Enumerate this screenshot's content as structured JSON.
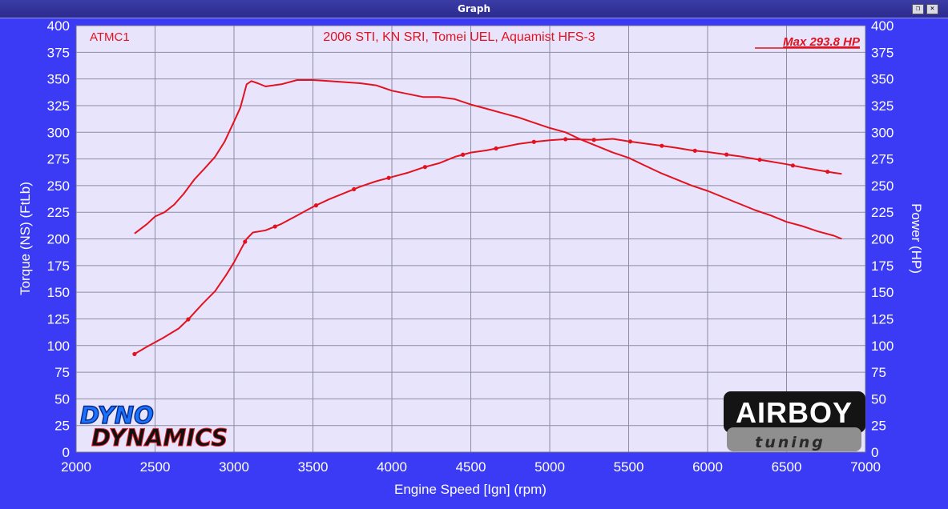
{
  "window": {
    "title": "Graph",
    "restore_glyph": "❐",
    "close_glyph": "×",
    "colors": {
      "frame": "#3b3bf5",
      "titlebar": "#2e2e96",
      "plot_bg": "#e8e4fc",
      "grid": "#8c8ca6",
      "curve": "#e3121e",
      "label_text": "#ffffff",
      "annotation": "#e3121e"
    }
  },
  "chart_data": {
    "type": "line",
    "xlabel": "Engine Speed [Ign] (rpm)",
    "ylabel_left": "Torque (NS) (FtLb)",
    "ylabel_right": "Power (HP)",
    "xlim": [
      2000,
      7000
    ],
    "ylim": [
      0,
      400
    ],
    "x_ticks": [
      "2000",
      "2500",
      "3000",
      "3500",
      "4000",
      "4500",
      "5000",
      "5500",
      "6000",
      "6500",
      "7000"
    ],
    "y_ticks": [
      "0",
      "25",
      "50",
      "75",
      "100",
      "125",
      "150",
      "175",
      "200",
      "225",
      "250",
      "275",
      "300",
      "325",
      "350",
      "375",
      "400"
    ],
    "grid": true,
    "annotations": {
      "run_id": "ATMC1",
      "title": "2006 STI, KN SRI, Tomei UEL, Aquamist HFS-3",
      "max_power": "Max 293.8 HP"
    },
    "series": [
      {
        "id": "torque",
        "axis": "left",
        "x": [
          2370,
          2450,
          2500,
          2560,
          2620,
          2680,
          2750,
          2820,
          2880,
          2940,
          3000,
          3040,
          3080,
          3110,
          3150,
          3200,
          3300,
          3400,
          3500,
          3600,
          3700,
          3800,
          3900,
          4000,
          4100,
          4200,
          4300,
          4400,
          4500,
          4600,
          4700,
          4800,
          4900,
          5000,
          5100,
          5200,
          5300,
          5400,
          5500,
          5600,
          5700,
          5800,
          5900,
          6000,
          6100,
          6200,
          6300,
          6400,
          6500,
          6600,
          6700,
          6800,
          6850
        ],
        "values": [
          205,
          214,
          221,
          225,
          232,
          242,
          256,
          267,
          277,
          291,
          310,
          323,
          345,
          348,
          346,
          343,
          345,
          349,
          349,
          348,
          347,
          346,
          344,
          339,
          336,
          333,
          333,
          331,
          326,
          322,
          318,
          314,
          309,
          304,
          300,
          293,
          287,
          281,
          276,
          269,
          262,
          256,
          250,
          245,
          239,
          233,
          227,
          222,
          216,
          212,
          207,
          203,
          200
        ]
      },
      {
        "id": "power",
        "axis": "right",
        "x": [
          2370,
          2450,
          2550,
          2650,
          2720,
          2800,
          2880,
          2950,
          3000,
          3050,
          3080,
          3120,
          3200,
          3300,
          3400,
          3500,
          3600,
          3700,
          3800,
          3900,
          4000,
          4100,
          4200,
          4300,
          4400,
          4500,
          4600,
          4700,
          4800,
          4900,
          5000,
          5100,
          5200,
          5300,
          5400,
          5500,
          5600,
          5700,
          5800,
          5900,
          6000,
          6100,
          6200,
          6300,
          6400,
          6500,
          6600,
          6700,
          6800,
          6850
        ],
        "values": [
          92,
          99,
          107,
          116,
          126,
          139,
          151,
          166,
          178,
          192,
          200,
          206,
          208,
          214,
          222,
          230,
          237,
          243,
          249,
          254,
          258,
          262,
          267,
          271,
          277,
          281,
          283,
          286,
          289,
          291,
          292.5,
          293.5,
          293.2,
          292.8,
          293.8,
          291.5,
          289.5,
          287.5,
          285.5,
          283,
          281.5,
          279.5,
          277.5,
          275,
          272.5,
          270,
          267,
          264.5,
          262,
          261
        ]
      }
    ]
  },
  "logos": {
    "left_line1": "DYNO",
    "left_line2": "DYNAMICS",
    "right_main": "AIRBOY",
    "right_sub": "tuning"
  }
}
